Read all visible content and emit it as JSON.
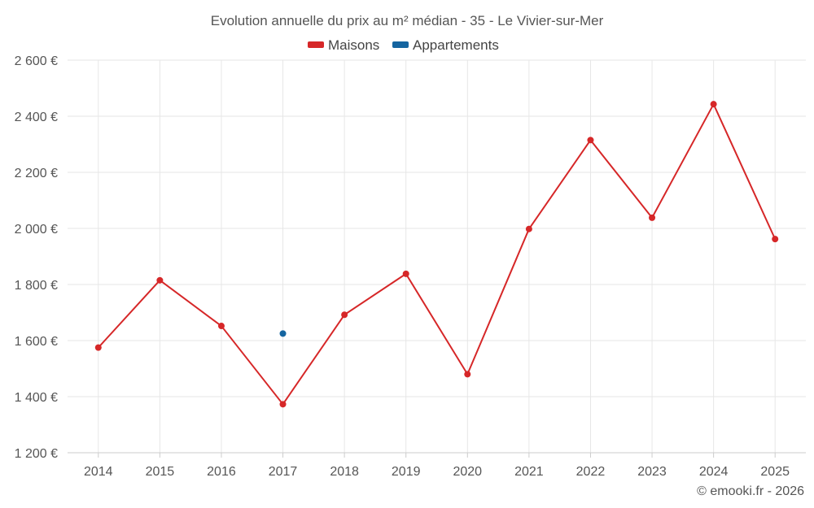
{
  "chart_data": {
    "type": "line",
    "title": "Evolution annuelle du prix au m² médian - 35 - Le Vivier-sur-Mer",
    "categories": [
      "2014",
      "2015",
      "2016",
      "2017",
      "2018",
      "2019",
      "2020",
      "2021",
      "2022",
      "2023",
      "2024",
      "2025"
    ],
    "ylim": [
      1200,
      2600
    ],
    "yticks": [
      1200,
      1400,
      1600,
      1800,
      2000,
      2200,
      2400,
      2600
    ],
    "ytick_labels": [
      "1 200 €",
      "1 400 €",
      "1 600 €",
      "1 800 €",
      "2 000 €",
      "2 200 €",
      "2 400 €",
      "2 600 €"
    ],
    "legend_position": "top-center",
    "grid": true,
    "series": [
      {
        "name": "Maisons",
        "color": "#d62728",
        "values": [
          1575,
          1815,
          1652,
          1373,
          1692,
          1838,
          1480,
          1998,
          2315,
          2038,
          2443,
          1962
        ]
      },
      {
        "name": "Appartements",
        "color": "#1565a0",
        "values": [
          null,
          null,
          null,
          1625,
          null,
          null,
          null,
          null,
          null,
          null,
          null,
          null
        ]
      }
    ],
    "credit": "© emooki.fr - 2026"
  }
}
